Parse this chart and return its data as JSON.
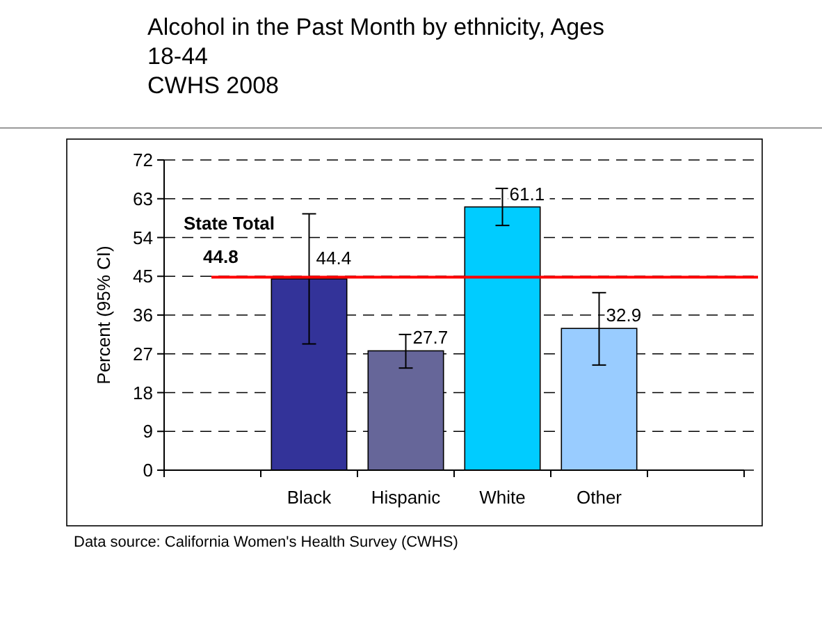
{
  "chart_data": {
    "type": "bar",
    "title": "Alcohol in the Past Month by ethnicity, Ages 18-44",
    "subtitle": "CWHS 2008",
    "ylabel": "Percent (95% CI)",
    "categories": [
      null,
      "Black",
      "Hispanic",
      "White",
      "Other",
      null
    ],
    "values": [
      null,
      44.4,
      27.7,
      61.1,
      32.9,
      null
    ],
    "colors": [
      null,
      "#333399",
      "#666699",
      "#00ccff",
      "#99ccff",
      null
    ],
    "errors": [
      null,
      [
        29.3,
        59.5
      ],
      [
        23.7,
        31.5
      ],
      [
        56.8,
        65.4
      ],
      [
        24.4,
        41.2
      ],
      null
    ],
    "data_labels": true,
    "ylim": [
      0,
      72
    ],
    "yticks": [
      0,
      9,
      18,
      27,
      36,
      45,
      54,
      63,
      72
    ],
    "grid": "y",
    "ref_lines": [
      {
        "axis": "y",
        "value": 44.8,
        "label": "State Total 44.8",
        "color": "#ff0000"
      }
    ],
    "annotations": [
      "Data source: California Women's Health Survey (CWHS)"
    ]
  }
}
